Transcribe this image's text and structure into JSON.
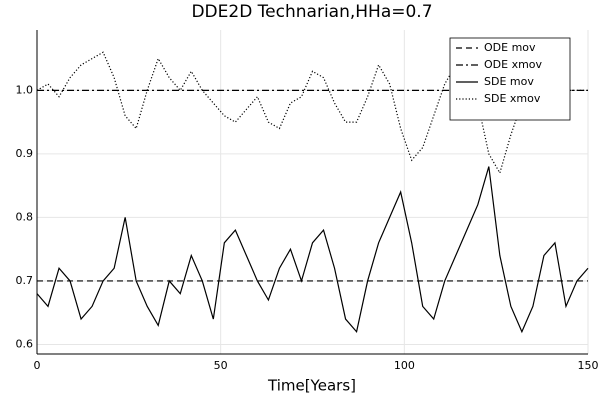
{
  "chart_data": {
    "type": "line",
    "title": "DDE2D Technarian,HHa=0.7",
    "xlabel": "Time[Years]",
    "x": [
      0,
      3,
      6,
      9,
      12,
      15,
      18,
      21,
      24,
      27,
      30,
      33,
      36,
      39,
      42,
      45,
      48,
      51,
      54,
      57,
      60,
      63,
      66,
      69,
      72,
      75,
      78,
      81,
      84,
      87,
      90,
      93,
      96,
      99,
      102,
      105,
      108,
      111,
      114,
      117,
      120,
      123,
      126,
      129,
      132,
      135,
      138,
      141,
      144,
      147,
      150
    ],
    "series": [
      {
        "name": "ODE mov",
        "color": "#000000",
        "style": "dashed",
        "values": [
          0.7,
          0.7,
          0.7,
          0.7,
          0.7,
          0.7,
          0.7,
          0.7,
          0.7,
          0.7,
          0.7,
          0.7,
          0.7,
          0.7,
          0.7,
          0.7,
          0.7,
          0.7,
          0.7,
          0.7,
          0.7,
          0.7,
          0.7,
          0.7,
          0.7,
          0.7,
          0.7,
          0.7,
          0.7,
          0.7,
          0.7,
          0.7,
          0.7,
          0.7,
          0.7,
          0.7,
          0.7,
          0.7,
          0.7,
          0.7,
          0.7,
          0.7,
          0.7,
          0.7,
          0.7,
          0.7,
          0.7,
          0.7,
          0.7,
          0.7,
          0.7
        ]
      },
      {
        "name": "ODE xmov",
        "color": "#000000",
        "style": "dashdot",
        "values": [
          1.0,
          1.0,
          1.0,
          1.0,
          1.0,
          1.0,
          1.0,
          1.0,
          1.0,
          1.0,
          1.0,
          1.0,
          1.0,
          1.0,
          1.0,
          1.0,
          1.0,
          1.0,
          1.0,
          1.0,
          1.0,
          1.0,
          1.0,
          1.0,
          1.0,
          1.0,
          1.0,
          1.0,
          1.0,
          1.0,
          1.0,
          1.0,
          1.0,
          1.0,
          1.0,
          1.0,
          1.0,
          1.0,
          1.0,
          1.0,
          1.0,
          1.0,
          1.0,
          1.0,
          1.0,
          1.0,
          1.0,
          1.0,
          1.0,
          1.0,
          1.0
        ]
      },
      {
        "name": "SDE mov",
        "color": "#000000",
        "style": "solid",
        "values": [
          0.68,
          0.66,
          0.72,
          0.7,
          0.64,
          0.66,
          0.7,
          0.72,
          0.8,
          0.7,
          0.66,
          0.63,
          0.7,
          0.68,
          0.74,
          0.7,
          0.64,
          0.76,
          0.78,
          0.74,
          0.7,
          0.67,
          0.72,
          0.75,
          0.7,
          0.76,
          0.78,
          0.72,
          0.64,
          0.62,
          0.7,
          0.76,
          0.8,
          0.84,
          0.76,
          0.66,
          0.64,
          0.7,
          0.74,
          0.78,
          0.82,
          0.88,
          0.74,
          0.66,
          0.62,
          0.66,
          0.74,
          0.76,
          0.66,
          0.7,
          0.72
        ]
      },
      {
        "name": "SDE xmov",
        "color": "#000000",
        "style": "dotted",
        "values": [
          1.0,
          1.01,
          0.99,
          1.02,
          1.04,
          1.05,
          1.06,
          1.02,
          0.96,
          0.94,
          1.0,
          1.05,
          1.02,
          1.0,
          1.03,
          1.0,
          0.98,
          0.96,
          0.95,
          0.97,
          0.99,
          0.95,
          0.94,
          0.98,
          0.99,
          1.03,
          1.02,
          0.98,
          0.95,
          0.95,
          0.99,
          1.04,
          1.01,
          0.94,
          0.89,
          0.91,
          0.96,
          1.01,
          1.04,
          1.06,
          0.98,
          0.9,
          0.87,
          0.93,
          0.98,
          1.01,
          1.02,
          1.01,
          1.0,
          1.0,
          1.0
        ]
      }
    ],
    "xlim": [
      0,
      150
    ],
    "ylim": [
      0.585,
      1.095
    ],
    "xticks": [
      0,
      50,
      100,
      150
    ],
    "yticks": [
      0.6,
      0.7,
      0.8,
      0.9,
      {
        "value": 1,
        "label": "1.0"
      }
    ],
    "grid": true,
    "legend": "top-right"
  }
}
